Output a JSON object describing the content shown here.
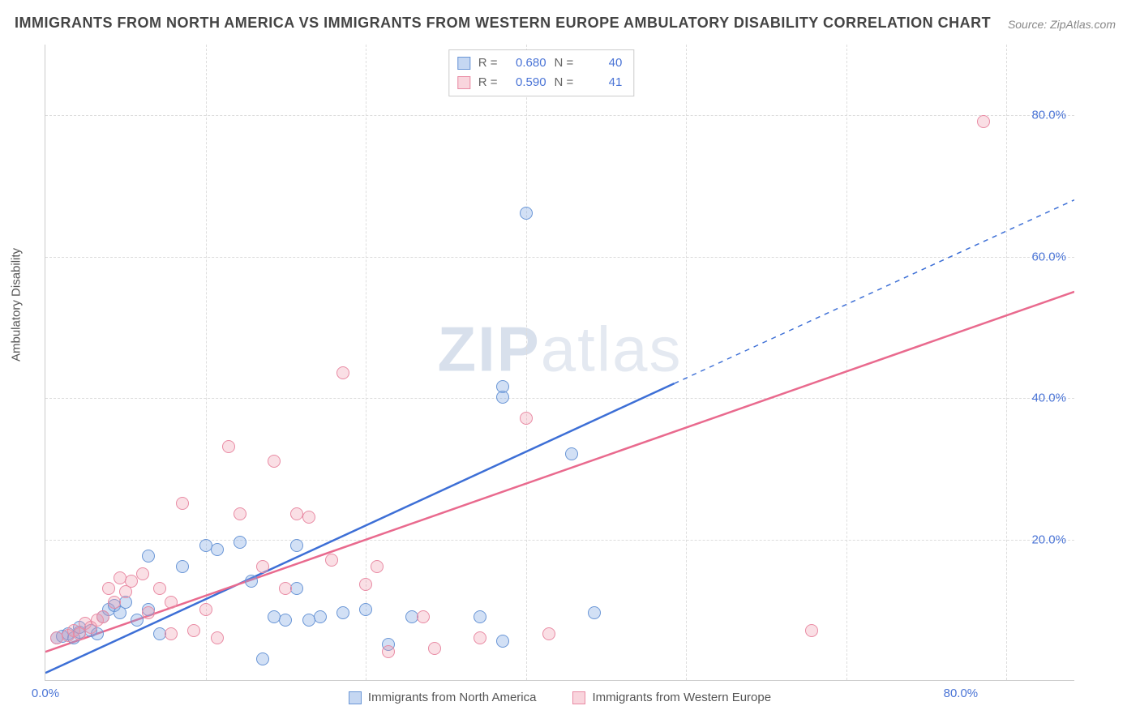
{
  "title": "IMMIGRANTS FROM NORTH AMERICA VS IMMIGRANTS FROM WESTERN EUROPE AMBULATORY DISABILITY CORRELATION CHART",
  "source": "Source: ZipAtlas.com",
  "watermark_a": "ZIP",
  "watermark_b": "atlas",
  "y_axis_label": "Ambulatory Disability",
  "chart": {
    "type": "scatter",
    "xlim": [
      0,
      90
    ],
    "ylim": [
      0,
      90
    ],
    "y_ticks": [
      20,
      40,
      60,
      80
    ],
    "y_tick_labels": [
      "20.0%",
      "40.0%",
      "60.0%",
      "80.0%"
    ],
    "x_ticks": [
      0,
      80
    ],
    "x_tick_labels": [
      "0.0%",
      "80.0%"
    ],
    "x_grid_positions": [
      0,
      14,
      28,
      42,
      56,
      70,
      84
    ],
    "grid_color": "#dddddd",
    "background_color": "#ffffff",
    "axis_color": "#cccccc",
    "tick_label_color": "#4a74d6",
    "axis_label_color": "#555555",
    "title_color": "#444444",
    "title_fontsize": 18,
    "label_fontsize": 15
  },
  "series": [
    {
      "name": "Immigrants from North America",
      "color_fill": "rgba(127,167,226,0.35)",
      "color_stroke": "#6a96d6",
      "marker_radius": 8,
      "R": "0.680",
      "N": "40",
      "trend": {
        "x1": 0,
        "y1": 1,
        "x2_solid": 55,
        "y2_solid": 42,
        "x2_dash": 90,
        "y2_dash": 68,
        "width": 2.5,
        "dash": "6 6"
      },
      "points": [
        [
          1,
          6
        ],
        [
          1.5,
          6.2
        ],
        [
          2,
          6.5
        ],
        [
          2.5,
          6
        ],
        [
          3,
          6.8
        ],
        [
          3,
          7.5
        ],
        [
          4,
          7
        ],
        [
          4.5,
          6.5
        ],
        [
          5,
          9
        ],
        [
          5.5,
          10
        ],
        [
          6,
          10.5
        ],
        [
          6.5,
          9.5
        ],
        [
          7,
          11
        ],
        [
          8,
          8.5
        ],
        [
          9,
          17.5
        ],
        [
          9,
          10
        ],
        [
          10,
          6.5
        ],
        [
          12,
          16
        ],
        [
          14,
          19
        ],
        [
          15,
          18.5
        ],
        [
          17,
          19.5
        ],
        [
          18,
          14
        ],
        [
          19,
          3
        ],
        [
          20,
          9
        ],
        [
          21,
          8.5
        ],
        [
          22,
          13
        ],
        [
          22,
          19
        ],
        [
          23,
          8.5
        ],
        [
          24,
          9
        ],
        [
          26,
          9.5
        ],
        [
          28,
          10
        ],
        [
          30,
          5
        ],
        [
          32,
          9
        ],
        [
          38,
          9
        ],
        [
          40,
          41.5
        ],
        [
          40,
          40
        ],
        [
          42,
          66
        ],
        [
          46,
          32
        ],
        [
          40,
          5.5
        ],
        [
          48,
          9.5
        ]
      ]
    },
    {
      "name": "Immigrants from Western Europe",
      "color_fill": "rgba(240,150,170,0.3)",
      "color_stroke": "#e98ba4",
      "marker_radius": 8,
      "R": "0.590",
      "N": "41",
      "trend": {
        "x1": 0,
        "y1": 4,
        "x2_solid": 90,
        "y2_solid": 55,
        "width": 2.5
      },
      "points": [
        [
          1,
          6
        ],
        [
          2,
          6.3
        ],
        [
          2.5,
          7
        ],
        [
          3,
          6.5
        ],
        [
          3.5,
          8
        ],
        [
          4,
          7.5
        ],
        [
          4.5,
          8.5
        ],
        [
          5,
          9
        ],
        [
          5.5,
          13
        ],
        [
          6,
          11
        ],
        [
          6.5,
          14.5
        ],
        [
          7,
          12.5
        ],
        [
          7.5,
          14
        ],
        [
          8.5,
          15
        ],
        [
          9,
          9.5
        ],
        [
          10,
          13
        ],
        [
          11,
          11
        ],
        [
          11,
          6.5
        ],
        [
          12,
          25
        ],
        [
          13,
          7
        ],
        [
          14,
          10
        ],
        [
          15,
          6
        ],
        [
          16,
          33
        ],
        [
          17,
          23.5
        ],
        [
          19,
          16
        ],
        [
          20,
          31
        ],
        [
          21,
          13
        ],
        [
          22,
          23.5
        ],
        [
          23,
          23
        ],
        [
          25,
          17
        ],
        [
          26,
          43.5
        ],
        [
          28,
          13.5
        ],
        [
          29,
          16
        ],
        [
          30,
          4
        ],
        [
          33,
          9
        ],
        [
          34,
          4.5
        ],
        [
          38,
          6
        ],
        [
          42,
          37
        ],
        [
          44,
          6.5
        ],
        [
          67,
          7
        ],
        [
          82,
          79
        ]
      ]
    }
  ],
  "stat_legend_labels": {
    "R": "R =",
    "N": "N ="
  },
  "bottom_legend": [
    {
      "swatch": "blue",
      "label": "Immigrants from North America"
    },
    {
      "swatch": "pink",
      "label": "Immigrants from Western Europe"
    }
  ]
}
